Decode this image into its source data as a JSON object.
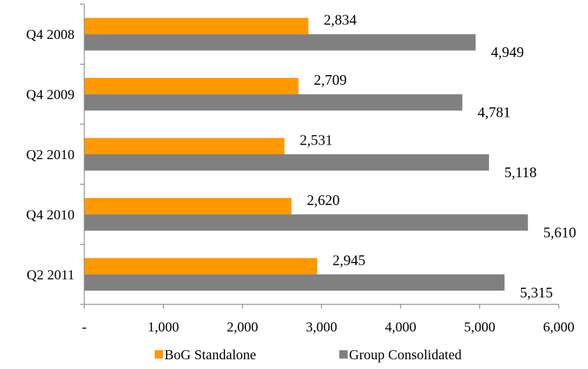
{
  "chart_data": {
    "type": "bar",
    "orientation": "horizontal",
    "categories": [
      "Q4 2008",
      "Q4 2009",
      "Q2 2010",
      "Q4 2010",
      "Q2 2011"
    ],
    "series": [
      {
        "name": "BoG Standalone",
        "color": "#FF9900",
        "values": [
          2834,
          2709,
          2531,
          2620,
          2945
        ],
        "labels": [
          "2,834",
          "2,709",
          "2,531",
          "2,620",
          "2,945"
        ]
      },
      {
        "name": "Group Consolidated",
        "color": "#808080",
        "values": [
          4949,
          4781,
          5118,
          5610,
          5315
        ],
        "labels": [
          "4,949",
          "4,781",
          "5,118",
          "5,610",
          "5,315"
        ]
      }
    ],
    "xlim": [
      0,
      6000
    ],
    "x_ticks": [
      0,
      1000,
      2000,
      3000,
      4000,
      5000,
      6000
    ],
    "x_tick_labels": [
      "-",
      "1,000",
      "2,000",
      "3,000",
      "4,000",
      "5,000",
      "6,000"
    ],
    "grid": false,
    "legend_position": "bottom",
    "title": "",
    "xlabel": "",
    "ylabel": ""
  }
}
